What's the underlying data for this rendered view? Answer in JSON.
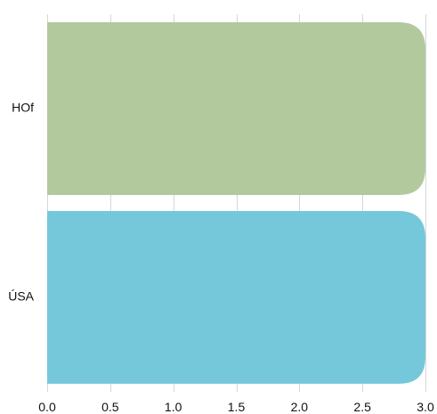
{
  "chart_data": {
    "type": "bar",
    "orientation": "horizontal",
    "categories": [
      "HOf",
      "ÚSA"
    ],
    "values": [
      3.0,
      3.0
    ],
    "colors": [
      "#b2c99d",
      "#75c8d9"
    ],
    "xlim": [
      0,
      3.0
    ],
    "xticks": [
      "0.0",
      "0.5",
      "1.0",
      "1.5",
      "2.0",
      "2.5",
      "3.0"
    ],
    "grid": true,
    "legend": "none"
  }
}
